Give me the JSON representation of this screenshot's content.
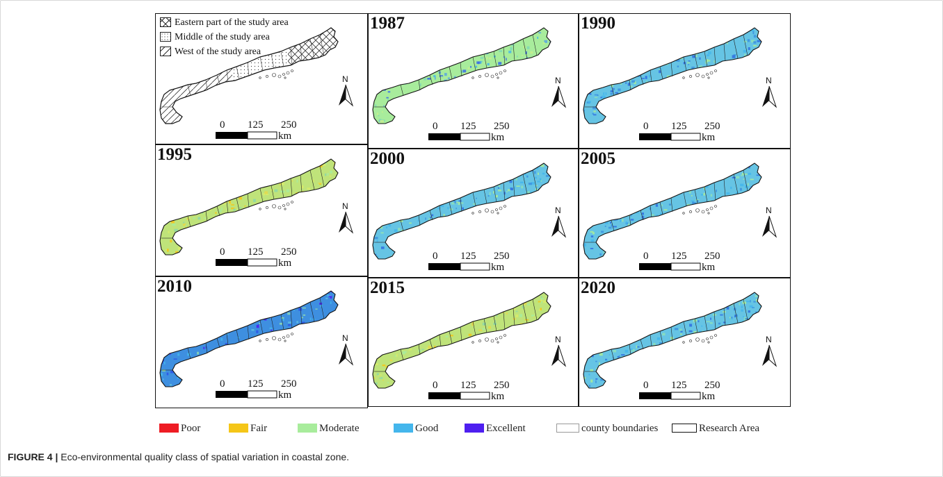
{
  "figure": {
    "label": "FIGURE 4 |",
    "title": " Eco-environmental quality class of spatial variation in coastal zone."
  },
  "key_map": {
    "items": [
      {
        "label": "Eastern part of the study area",
        "pattern": "cross-hatch"
      },
      {
        "label": "Middle of the study area",
        "pattern": "dots"
      },
      {
        "label": "West of the study area",
        "pattern": "diagonal"
      }
    ]
  },
  "scale_bar": {
    "ticks": [
      "0",
      "125",
      "250"
    ],
    "unit": "km"
  },
  "north_arrow_label": "N",
  "panels": [
    {
      "year": "1987",
      "dominant_class": "Moderate"
    },
    {
      "year": "1990",
      "dominant_class": "Good"
    },
    {
      "year": "1995",
      "dominant_class": "Fair"
    },
    {
      "year": "2000",
      "dominant_class": "Good"
    },
    {
      "year": "2005",
      "dominant_class": "Good"
    },
    {
      "year": "2010",
      "dominant_class": "Excellent"
    },
    {
      "year": "2015",
      "dominant_class": "Fair"
    },
    {
      "year": "2020",
      "dominant_class": "Good"
    }
  ],
  "legend": [
    {
      "label": "Poor",
      "color": "#ee1c24"
    },
    {
      "label": "Fair",
      "color": "#f5c618"
    },
    {
      "label": "Moderate",
      "color": "#a8ec9c"
    },
    {
      "label": "Good",
      "color": "#44b6ec"
    },
    {
      "label": "Excellent",
      "color": "#4e1ff0"
    },
    {
      "label": "county boundaries",
      "color": "#ffffff"
    },
    {
      "label": "Research Area",
      "color": "#ffffff"
    }
  ]
}
